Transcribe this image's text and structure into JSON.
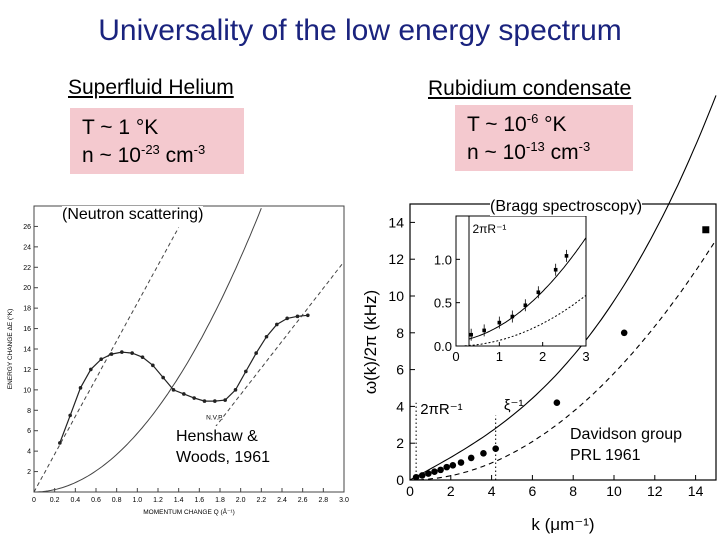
{
  "title": "Universality of the low energy spectrum",
  "left": {
    "heading": "Superfluid Helium",
    "temp_main": "T ~ 1 °K",
    "density_prefix": "n ~ 10",
    "density_exp": "-23",
    "density_unit": " cm",
    "density_unit_exp": "-3",
    "method": "(Neutron scattering)",
    "citation_line1": "Henshaw &",
    "citation_line2": "Woods, 1961",
    "chart_data": {
      "type": "scatter",
      "xlabel": "MOMENTUM CHANGE  Q (Å⁻¹)",
      "ylabel": "ENERGY CHANGE  ΔE (°K)",
      "xlim": [
        0,
        3.0
      ],
      "ylim": [
        0,
        28
      ],
      "x_ticks": [
        "0",
        "0.2",
        "0.4",
        "0.6",
        "0.8",
        "1.0",
        "1.2",
        "1.4",
        "1.6",
        "1.8",
        "2.0",
        "2.2",
        "2.4",
        "2.6",
        "2.8",
        "3.0"
      ],
      "y_ticks": [
        "2",
        "4",
        "6",
        "8",
        "10",
        "12",
        "14",
        "16",
        "18",
        "20",
        "22",
        "24",
        "26"
      ],
      "annotation": "N.V.P.",
      "series": [
        {
          "x": [
            0.25,
            0.35,
            0.45,
            0.55,
            0.65,
            0.75,
            0.85,
            0.95,
            1.05,
            1.15,
            1.25,
            1.35,
            1.45,
            1.55,
            1.65,
            1.75,
            1.85,
            1.95,
            2.05,
            2.15,
            2.25,
            2.35,
            2.45,
            2.55,
            2.65
          ],
          "y": [
            4.8,
            7.5,
            10.2,
            12.0,
            13.0,
            13.5,
            13.7,
            13.6,
            13.2,
            12.4,
            11.2,
            10.0,
            9.6,
            9.2,
            8.9,
            8.9,
            9.0,
            10.0,
            11.8,
            13.6,
            15.2,
            16.4,
            17.0,
            17.2,
            17.3
          ]
        }
      ]
    }
  },
  "right": {
    "heading": "Rubidium condensate",
    "temp_prefix": "T ~ 10",
    "temp_exp": "-6",
    "temp_unit": " °K",
    "density_prefix": "n ~ 10",
    "density_exp": "-13",
    "density_unit": " cm",
    "density_unit_exp": "-3",
    "method": "(Bragg spectroscopy)",
    "citation_line1": "Davidson group",
    "citation_line2": "PRL 1961",
    "chart_data": {
      "type": "scatter",
      "xlabel": "k (μm⁻¹)",
      "ylabel": "ω(k)/2π (kHz)",
      "xlim": [
        0,
        15
      ],
      "ylim": [
        0,
        15
      ],
      "x_ticks": [
        "0",
        "2",
        "4",
        "6",
        "8",
        "10",
        "12",
        "14"
      ],
      "y_ticks": [
        "0",
        "2",
        "4",
        "6",
        "8",
        "10",
        "12",
        "14"
      ],
      "annotations": [
        "2πR⁻¹",
        "ξ⁻¹"
      ],
      "series": [
        {
          "x": [
            0.3,
            0.6,
            0.9,
            1.2,
            1.5,
            1.8,
            2.1,
            2.5,
            3.0,
            3.6,
            4.2,
            7.2,
            10.5,
            14.5
          ],
          "y": [
            0.15,
            0.25,
            0.35,
            0.45,
            0.55,
            0.7,
            0.8,
            0.95,
            1.2,
            1.45,
            1.7,
            4.2,
            8.0,
            13.6
          ]
        }
      ],
      "inset": {
        "xlim": [
          0,
          3
        ],
        "ylim": [
          0,
          1.5
        ],
        "x_ticks": [
          "0",
          "1",
          "2",
          "3"
        ],
        "y_ticks": [
          "0.0",
          "0.5",
          "1.0"
        ],
        "annotation": "2πR⁻¹",
        "series": [
          {
            "x": [
              0.35,
              0.65,
              1.0,
              1.3,
              1.6,
              1.9,
              2.3,
              2.55
            ],
            "y": [
              0.13,
              0.18,
              0.27,
              0.34,
              0.47,
              0.62,
              0.88,
              1.04
            ]
          }
        ]
      }
    }
  }
}
